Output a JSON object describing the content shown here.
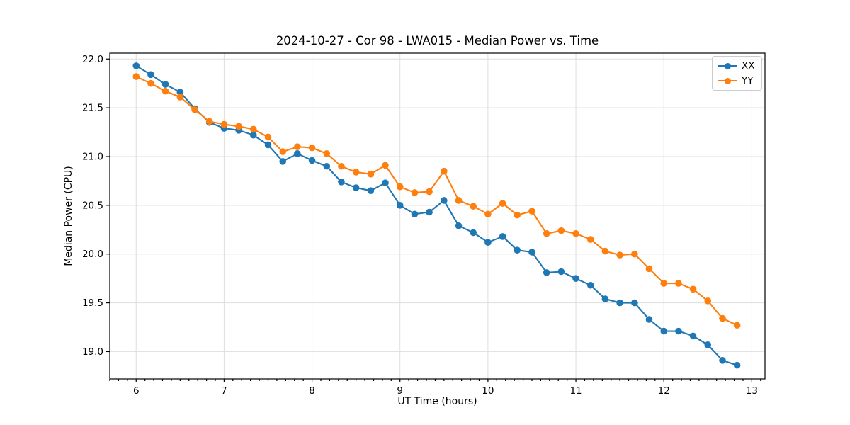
{
  "chart_data": {
    "type": "line",
    "title": "2024-10-27 - Cor 98 - LWA015 - Median Power vs. Time",
    "xlabel": "UT Time (hours)",
    "ylabel": "Median Power (CPU)",
    "grid": true,
    "legend_position": "upper right",
    "xlim": [
      5.7,
      13.15
    ],
    "ylim": [
      18.72,
      22.06
    ],
    "x_major_ticks": [
      6,
      7,
      8,
      9,
      10,
      11,
      12,
      13
    ],
    "x_minor_step": 0.1,
    "y_major_ticks": [
      19.0,
      19.5,
      20.0,
      20.5,
      21.0,
      21.5,
      22.0
    ],
    "x": [
      6.0,
      6.167,
      6.333,
      6.5,
      6.667,
      6.833,
      7.0,
      7.167,
      7.333,
      7.5,
      7.667,
      7.833,
      8.0,
      8.167,
      8.333,
      8.5,
      8.667,
      8.833,
      9.0,
      9.167,
      9.333,
      9.5,
      9.667,
      9.833,
      10.0,
      10.167,
      10.333,
      10.5,
      10.667,
      10.833,
      11.0,
      11.167,
      11.333,
      11.5,
      11.667,
      11.833,
      12.0,
      12.167,
      12.333,
      12.5,
      12.667,
      12.833
    ],
    "series": [
      {
        "name": "XX",
        "color": "#1f77b4",
        "values": [
          21.93,
          21.84,
          21.74,
          21.66,
          21.49,
          21.35,
          21.29,
          21.27,
          21.22,
          21.12,
          20.95,
          21.03,
          20.96,
          20.9,
          20.74,
          20.68,
          20.65,
          20.73,
          20.5,
          20.41,
          20.43,
          20.55,
          20.29,
          20.22,
          20.12,
          20.18,
          20.04,
          20.02,
          19.81,
          19.82,
          19.75,
          19.68,
          19.54,
          19.5,
          19.5,
          19.33,
          19.21,
          19.21,
          19.16,
          19.07,
          18.91,
          18.86
        ]
      },
      {
        "name": "YY",
        "color": "#ff7f0e",
        "values": [
          21.82,
          21.75,
          21.67,
          21.61,
          21.48,
          21.36,
          21.33,
          21.31,
          21.28,
          21.2,
          21.05,
          21.1,
          21.09,
          21.03,
          20.9,
          20.84,
          20.82,
          20.91,
          20.69,
          20.63,
          20.64,
          20.85,
          20.55,
          20.49,
          20.41,
          20.52,
          20.4,
          20.44,
          20.21,
          20.24,
          20.21,
          20.15,
          20.03,
          19.99,
          20.0,
          19.85,
          19.7,
          19.7,
          19.64,
          19.52,
          19.34,
          19.27
        ]
      }
    ],
    "style": {
      "grid_color": "#dedede",
      "spine_color": "#000000",
      "tick_color": "#000000",
      "background": "#ffffff"
    }
  }
}
